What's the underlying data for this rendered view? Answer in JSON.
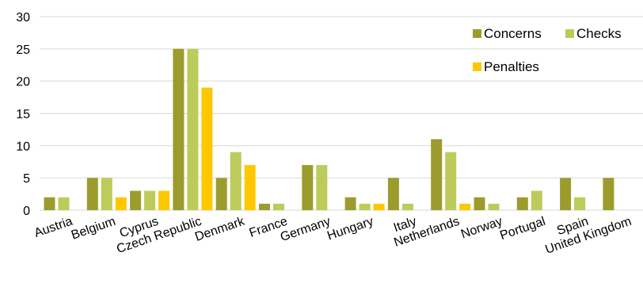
{
  "chart_data": {
    "type": "bar",
    "title": "",
    "xlabel": "",
    "ylabel": "",
    "ylim": [
      0,
      30
    ],
    "yticks": [
      0,
      5,
      10,
      15,
      20,
      25,
      30
    ],
    "grid": true,
    "legend_position": "top-right",
    "categories": [
      "Austria",
      "Belgium",
      "Cyprus",
      "Czech Republic",
      "Denmark",
      "France",
      "Germany",
      "Hungary",
      "Italy",
      "Netherlands",
      "Norway",
      "Portugal",
      "Spain",
      "United Kingdom"
    ],
    "series": [
      {
        "name": "Concerns",
        "color": "#9c9c2e",
        "values": [
          2,
          5,
          3,
          25,
          5,
          1,
          7,
          2,
          5,
          11,
          2,
          2,
          5,
          5
        ]
      },
      {
        "name": "Checks",
        "color": "#bccb5a",
        "values": [
          2,
          5,
          3,
          25,
          9,
          1,
          7,
          1,
          1,
          9,
          1,
          3,
          2,
          0
        ]
      },
      {
        "name": "Penalties",
        "color": "#ffc700",
        "values": [
          0,
          2,
          3,
          19,
          7,
          0,
          0,
          1,
          0,
          1,
          0,
          0,
          0,
          0
        ]
      }
    ]
  }
}
